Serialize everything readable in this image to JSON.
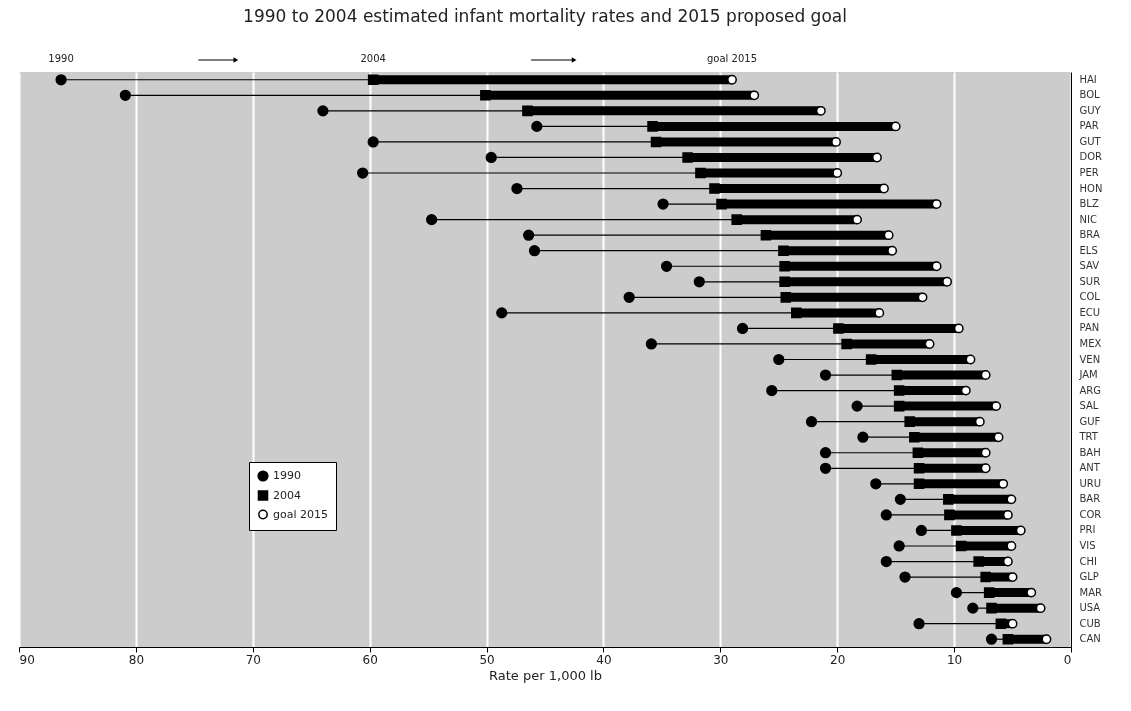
{
  "chart_data": {
    "type": "scatter",
    "title": "1990 to 2004 estimated infant mortality rates and 2015 proposed goal",
    "xlabel": "Rate per 1,000 lb",
    "categories": [
      "HAI",
      "BOL",
      "GUY",
      "PAR",
      "GUT",
      "DOR",
      "PER",
      "HON",
      "BLZ",
      "NIC",
      "BRA",
      "ELS",
      "SAV",
      "SUR",
      "COL",
      "ECU",
      "PAN",
      "MEX",
      "VEN",
      "JAM",
      "ARG",
      "SAL",
      "GUF",
      "TRT",
      "BAH",
      "ANT",
      "URU",
      "BAR",
      "COR",
      "PRI",
      "VIS",
      "CHI",
      "GLP",
      "MAR",
      "USA",
      "CUB",
      "CAN"
    ],
    "series": [
      {
        "name": "1990",
        "color": "#000000",
        "marker": "circle",
        "values": [
          86.4,
          80.9,
          64.0,
          45.7,
          59.7,
          49.6,
          60.6,
          47.4,
          34.9,
          54.7,
          46.4,
          45.9,
          34.6,
          31.8,
          37.8,
          48.7,
          28.1,
          35.9,
          25.0,
          21.0,
          25.6,
          18.3,
          22.2,
          17.8,
          21.0,
          21.0,
          16.7,
          14.6,
          15.8,
          12.8,
          14.7,
          15.8,
          14.2,
          9.8,
          8.4,
          13.0,
          6.8
        ]
      },
      {
        "name": "2004",
        "color": "#000000",
        "marker": "square",
        "values": [
          59.7,
          50.1,
          46.5,
          35.8,
          35.5,
          32.8,
          31.7,
          30.5,
          29.9,
          28.6,
          26.1,
          24.6,
          24.5,
          24.5,
          24.4,
          23.5,
          19.9,
          19.2,
          17.1,
          14.9,
          14.7,
          14.7,
          13.8,
          13.4,
          13.1,
          13.0,
          13.0,
          10.5,
          10.4,
          9.8,
          9.4,
          7.9,
          7.3,
          7.0,
          6.8,
          6.0,
          5.4
        ]
      },
      {
        "name": "goal 2015",
        "color": "#ffffff",
        "marker": "circle",
        "values": [
          29.0,
          27.1,
          21.4,
          15.0,
          20.1,
          16.6,
          20.0,
          16.0,
          11.5,
          18.3,
          15.6,
          15.3,
          11.5,
          10.6,
          12.7,
          16.4,
          9.6,
          12.1,
          8.6,
          7.3,
          9.0,
          6.4,
          7.8,
          6.2,
          7.3,
          7.3,
          5.8,
          5.1,
          5.4,
          4.3,
          5.1,
          5.4,
          5.0,
          3.4,
          2.6,
          5.0,
          2.1
        ]
      }
    ],
    "orientation": "horizontal",
    "xlim": [
      90,
      0
    ],
    "xticks": [
      90,
      80,
      70,
      60,
      50,
      40,
      30,
      20,
      10,
      0
    ],
    "grid": "x",
    "legend": "left",
    "annotations": [
      "1990",
      "2004",
      "goal 2015"
    ]
  }
}
